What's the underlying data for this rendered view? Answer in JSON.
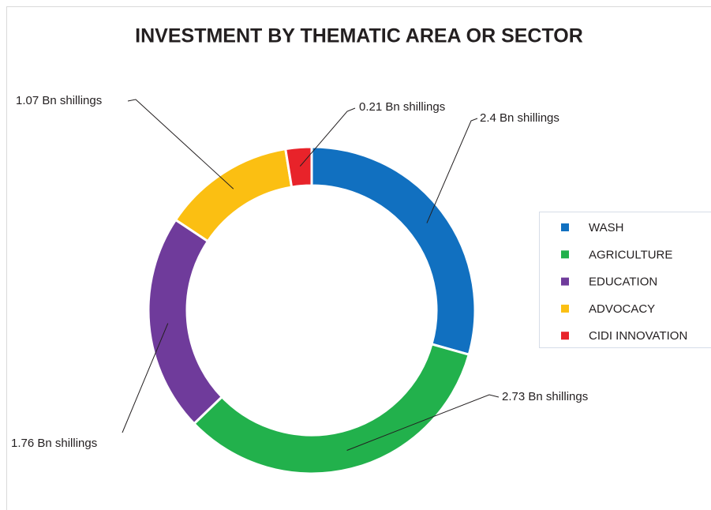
{
  "chart_data": {
    "type": "donut",
    "title": "INVESTMENT BY THEMATIC AREA OR SECTOR",
    "categories": [
      "WASH",
      "AGRICULTURE",
      "EDUCATION",
      "ADVOCACY",
      "CIDI INNOVATION"
    ],
    "values": [
      2.4,
      2.73,
      1.76,
      1.07,
      0.21
    ],
    "value_labels": [
      "2.4 Bn shillings",
      "2.73 Bn shillings",
      "1.76 Bn shillings",
      "1.07 Bn shillings",
      "0.21 Bn shillings"
    ],
    "colors": [
      "#1170c0",
      "#22b14c",
      "#6f3b9b",
      "#fbbf12",
      "#e8232a"
    ],
    "legend": "right"
  }
}
